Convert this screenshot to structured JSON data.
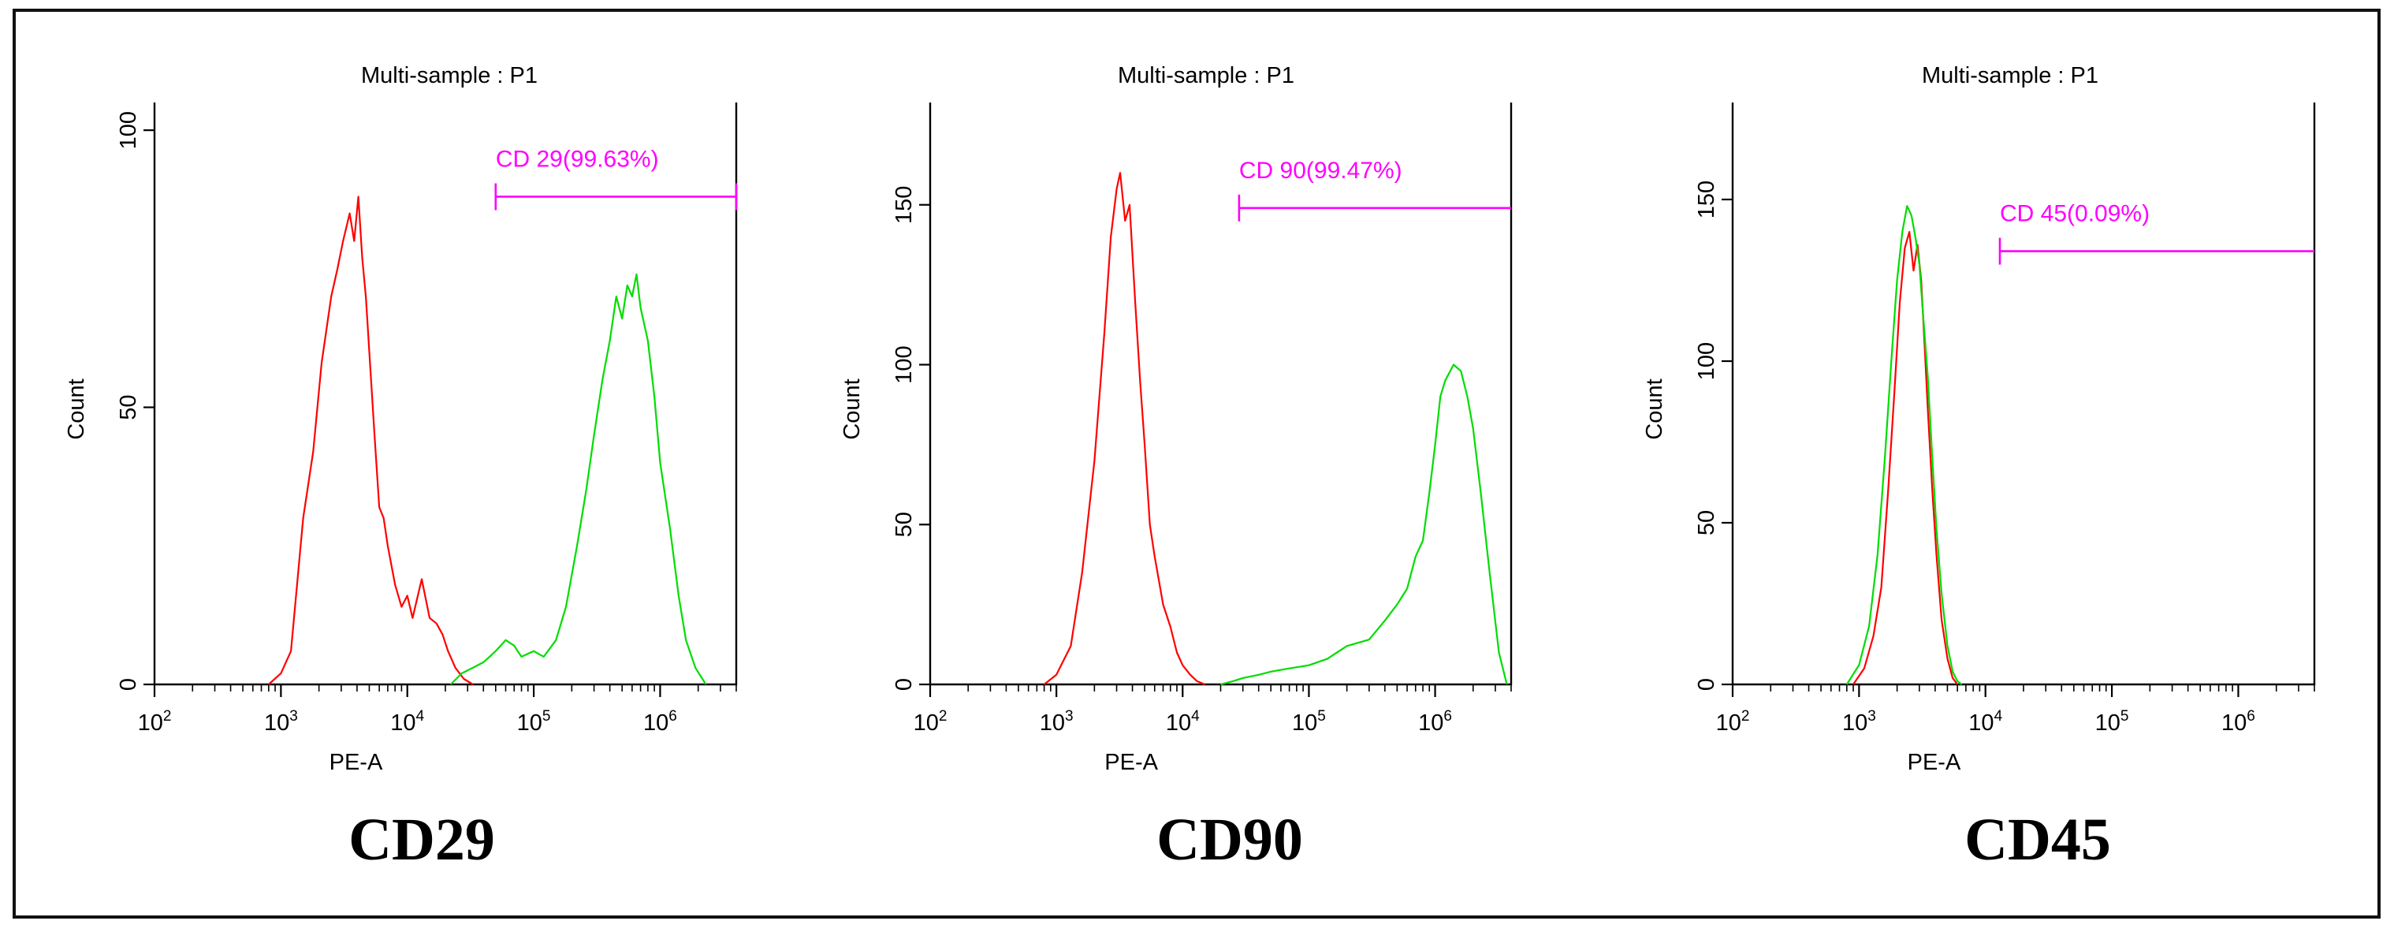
{
  "colors": {
    "control_series": "#ff0000",
    "marker_series": "#00dd00",
    "gate": "#ff00ff",
    "axis": "#000000"
  },
  "chart_data": [
    {
      "type": "line",
      "title": "Multi-sample : P1",
      "xlabel": "PE-A",
      "ylabel": "Count",
      "x_scale": "log",
      "xlim": [
        100,
        4000000
      ],
      "ylim": [
        0,
        105
      ],
      "y_ticks": [
        0,
        50,
        100
      ],
      "x_tick_exponents": [
        2,
        3,
        4,
        5,
        6
      ],
      "grid": false,
      "marker_label": "CD29",
      "gate": {
        "label": "CD 29(99.63%)",
        "x_start": 50000,
        "x_end": 4000000,
        "y": 88
      },
      "series": [
        {
          "color": "#ff0000",
          "x": [
            800,
            1000,
            1200,
            1500,
            1800,
            2100,
            2500,
            2800,
            3100,
            3500,
            3800,
            4100,
            4400,
            4700,
            5000,
            5500,
            6000,
            6500,
            7000,
            8000,
            9000,
            10000,
            11000,
            13000,
            15000,
            17000,
            19000,
            21000,
            24000,
            28000,
            33000
          ],
          "y": [
            0,
            2,
            6,
            30,
            42,
            58,
            70,
            75,
            80,
            85,
            80,
            88,
            77,
            70,
            60,
            45,
            32,
            30,
            25,
            18,
            14,
            16,
            12,
            19,
            12,
            11,
            9,
            6,
            3,
            1,
            0
          ]
        },
        {
          "color": "#00dd00",
          "x": [
            22000,
            27000,
            33000,
            40000,
            50000,
            60000,
            70000,
            80000,
            100000,
            120000,
            150000,
            180000,
            220000,
            260000,
            300000,
            350000,
            400000,
            450000,
            500000,
            550000,
            600000,
            650000,
            700000,
            800000,
            900000,
            1000000,
            1200000,
            1400000,
            1600000,
            1900000,
            2300000
          ],
          "y": [
            0,
            2,
            3,
            4,
            6,
            8,
            7,
            5,
            6,
            5,
            8,
            14,
            25,
            35,
            45,
            55,
            62,
            70,
            66,
            72,
            70,
            74,
            68,
            62,
            52,
            40,
            28,
            16,
            8,
            3,
            0
          ]
        }
      ]
    },
    {
      "type": "line",
      "title": "Multi-sample : P1",
      "xlabel": "PE-A",
      "ylabel": "Count",
      "x_scale": "log",
      "xlim": [
        100,
        4000000
      ],
      "ylim": [
        0,
        182
      ],
      "y_ticks": [
        0,
        50,
        100,
        150
      ],
      "x_tick_exponents": [
        2,
        3,
        4,
        5,
        6
      ],
      "grid": false,
      "marker_label": "CD90",
      "gate": {
        "label": "CD 90(99.47%)",
        "x_start": 28000,
        "x_end": 4000000,
        "y": 149
      },
      "series": [
        {
          "color": "#ff0000",
          "x": [
            800,
            1000,
            1300,
            1600,
            2000,
            2400,
            2700,
            3000,
            3200,
            3500,
            3800,
            4200,
            4600,
            5000,
            5500,
            6000,
            7000,
            8000,
            9000,
            10000,
            11500,
            13000,
            15000
          ],
          "y": [
            0,
            3,
            12,
            35,
            70,
            110,
            140,
            155,
            160,
            145,
            150,
            120,
            95,
            75,
            50,
            40,
            25,
            18,
            10,
            6,
            3,
            1,
            0
          ]
        },
        {
          "color": "#00dd00",
          "x": [
            20000,
            25000,
            30000,
            40000,
            50000,
            70000,
            100000,
            140000,
            200000,
            300000,
            400000,
            500000,
            600000,
            700000,
            800000,
            900000,
            1000000,
            1100000,
            1200000,
            1400000,
            1600000,
            1800000,
            2000000,
            2300000,
            2700000,
            3200000,
            3700000
          ],
          "y": [
            0,
            1,
            2,
            3,
            4,
            5,
            6,
            8,
            12,
            14,
            20,
            25,
            30,
            40,
            45,
            60,
            75,
            90,
            95,
            100,
            98,
            90,
            80,
            60,
            35,
            10,
            0
          ]
        }
      ]
    },
    {
      "type": "line",
      "title": "Multi-sample : P1",
      "xlabel": "PE-A",
      "ylabel": "Count",
      "x_scale": "log",
      "xlim": [
        100,
        4000000
      ],
      "ylim": [
        0,
        180
      ],
      "y_ticks": [
        0,
        50,
        100,
        150
      ],
      "x_tick_exponents": [
        2,
        3,
        4,
        5,
        6
      ],
      "grid": false,
      "marker_label": "CD45",
      "gate": {
        "label": "CD 45(0.09%)",
        "x_start": 13000,
        "x_end": 4000000,
        "y": 134
      },
      "series": [
        {
          "color": "#ff0000",
          "x": [
            900,
            1100,
            1300,
            1500,
            1700,
            1900,
            2100,
            2300,
            2500,
            2700,
            2900,
            3100,
            3300,
            3500,
            3800,
            4100,
            4500,
            5000,
            5500,
            6000
          ],
          "y": [
            0,
            5,
            15,
            30,
            60,
            90,
            118,
            135,
            140,
            128,
            136,
            125,
            105,
            85,
            60,
            40,
            20,
            8,
            2,
            0
          ]
        },
        {
          "color": "#00dd00",
          "x": [
            800,
            1000,
            1200,
            1400,
            1600,
            1800,
            2000,
            2200,
            2400,
            2600,
            2800,
            3000,
            3200,
            3500,
            3800,
            4100,
            4500,
            5000,
            5500,
            6000,
            6500
          ],
          "y": [
            0,
            6,
            18,
            40,
            70,
            100,
            125,
            140,
            148,
            145,
            138,
            130,
            115,
            95,
            70,
            48,
            28,
            12,
            4,
            1,
            0
          ]
        }
      ]
    }
  ]
}
